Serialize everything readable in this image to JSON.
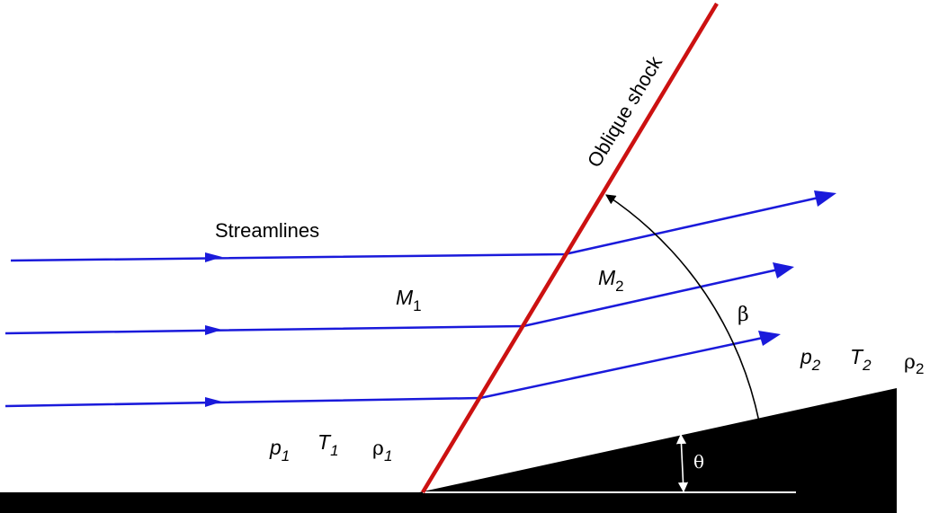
{
  "labels": {
    "shock": "Oblique shock",
    "streamlines": "Streamlines",
    "mach_upstream": {
      "base": "M",
      "sub": "1"
    },
    "mach_downstream": {
      "base": "M",
      "sub": "2"
    },
    "beta": "β",
    "theta": "θ",
    "upstream_state": {
      "p": {
        "base": "p",
        "sub": "1"
      },
      "T": {
        "base": "T",
        "sub": "1"
      },
      "rho": {
        "base": "ρ",
        "sub": "1"
      }
    },
    "downstream_state": {
      "p": {
        "base": "p",
        "sub": "2"
      },
      "T": {
        "base": "T",
        "sub": "2"
      },
      "rho": {
        "base": "ρ",
        "sub": "2"
      }
    }
  },
  "colors": {
    "shock": "#cc1111",
    "streamline": "#1a1adb",
    "surface": "#000000",
    "annotation": "#000000",
    "reference_line": "#ffffff",
    "background": "#ffffff"
  }
}
